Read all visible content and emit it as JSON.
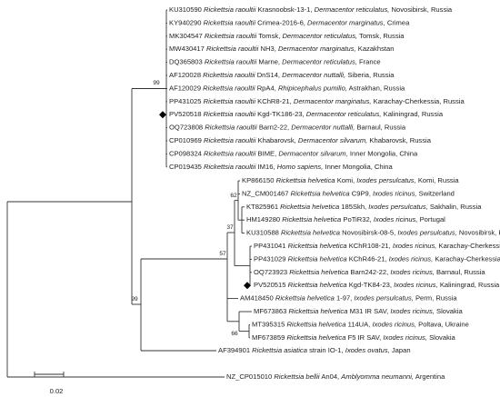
{
  "tree": {
    "leaves": [
      {
        "accession": "KU310590",
        "species": "Rickettsia raoultii",
        "strain": "Krasnoobsk-13-1,",
        "host": "Dermacentor reticulatus,",
        "location": "Novosibirsk, Russia",
        "marked": false
      },
      {
        "accession": "KY940290",
        "species": "Rickettsia raoultii",
        "strain": "Crimea-2016-6,",
        "host": "Dermacentor marginatus,",
        "location": "Crimea",
        "marked": false
      },
      {
        "accession": "MK304547",
        "species": "Rickettsia raoultii",
        "strain": "Tomsk,",
        "host": "Dermacentor reticulatus,",
        "location": "Tomsk, Russia",
        "marked": false
      },
      {
        "accession": "MW430417",
        "species": "Rickettsia raoultii",
        "strain": "NH3,",
        "host": "Dermacentor marginatus,",
        "location": "Kazakhstan",
        "marked": false
      },
      {
        "accession": "DQ365803",
        "species": "Rickettsia raoultii",
        "strain": "Marne,",
        "host": "Dermacentor reticulatus,",
        "location": "France",
        "marked": false
      },
      {
        "accession": "AF120028",
        "species": "Rickettsia raoultii",
        "strain": "DnS14,",
        "host": "Dermacentor nuttalli,",
        "location": "Siberia, Russia",
        "marked": false
      },
      {
        "accession": "AF120029",
        "species": "Rickettsia raoultii",
        "strain": "RpA4,",
        "host": "Rhipicephalus pumilio,",
        "location": "Astrakhan, Russia",
        "marked": false
      },
      {
        "accession": "PP431025",
        "species": "Rickettsia raoultii",
        "strain": "KChR8-21,",
        "host": "Dermacentor marginatus,",
        "location": "Karachay-Cherkessia, Russia",
        "marked": false
      },
      {
        "accession": "PV520518",
        "species": "Rickettsia raoultii",
        "strain": "Kgd-TK186-23,",
        "host": "Dermacentor reticulatus,",
        "location": "Kaliningrad, Russia",
        "marked": true
      },
      {
        "accession": "OQ723808",
        "species": "Rickettsia raoultii",
        "strain": "Barn2-22,",
        "host": "Dermacentor nuttalli,",
        "location": "Barnaul, Russia",
        "marked": false
      },
      {
        "accession": "CP010969",
        "species": "Rickettsia raoultii",
        "strain": "Khabarovsk,",
        "host": "Dermacentor silvarum,",
        "location": "Khabarovsk, Russia",
        "marked": false
      },
      {
        "accession": "CP098324",
        "species": "Rickettsia raoultii",
        "strain": "BIME,",
        "host": "Dermacentor silvarum,",
        "location": "Inner Mongolia, China",
        "marked": false
      },
      {
        "accession": "CP019435",
        "species": "Rickettsia raoultii",
        "strain": "IM16,",
        "host": "Homo sapiens,",
        "location": "Inner Mongolia, China",
        "marked": false
      },
      {
        "accession": "KP866150",
        "species": "Rickettsia helvetica",
        "strain": "Komi,",
        "host": "Ixodes persulcatus,",
        "location": "Komi, Russia",
        "marked": false
      },
      {
        "accession": "NZ_CM001467",
        "species": "Rickettsia helvetica",
        "strain": "C9P9,",
        "host": "Ixodes ricinus,",
        "location": "Switzerland",
        "marked": false
      },
      {
        "accession": "KT825961",
        "species": "Rickettsia helvetica",
        "strain": "185Skh,",
        "host": "Ixodes persulcatus,",
        "location": "Sakhalin, Russia",
        "marked": false
      },
      {
        "accession": "HM149280",
        "species": "Rickettsia helvetica",
        "strain": "PoTiR32,",
        "host": "Ixodes ricinus,",
        "location": "Portugal",
        "marked": false
      },
      {
        "accession": "KU310588",
        "species": "Rickettsia helvetica",
        "strain": "Novosibirsk-08-5,",
        "host": "Ixodes persulcatus,",
        "location": "Novosibirsk, Russia",
        "marked": false
      },
      {
        "accession": "PP431041",
        "species": "Rickettsia helvetica",
        "strain": "KChR108-21,",
        "host": "Ixodes ricinus,",
        "location": "Karachay-Cherkessia, Russia",
        "marked": false
      },
      {
        "accession": "PP431029",
        "species": "Rickettsia helvetica",
        "strain": "KChR46-21,",
        "host": "Ixodes ricinus,",
        "location": "Karachay-Cherkessia, Russia",
        "marked": false
      },
      {
        "accession": "OQ723923",
        "species": "Rickettsia helvetica",
        "strain": "Barn242-22,",
        "host": "Ixodes ricinus,",
        "location": "Barnaul, Russia",
        "marked": false
      },
      {
        "accession": "PV520515",
        "species": "Rickettsia helvetica",
        "strain": "Kgd-TK84-23,",
        "host": "Ixodes ricinus,",
        "location": "Kaliningrad, Russia",
        "marked": true
      },
      {
        "accession": "AM418450",
        "species": "Rickettsia helvetica",
        "strain": "1-97,",
        "host": "Ixodes persulcatus,",
        "location": "Perm, Russia",
        "marked": false
      },
      {
        "accession": "MF673863",
        "species": "Rickettsia helvetica",
        "strain": "M31 IR SAV,",
        "host": "Ixodes ricinus,",
        "location": "Slovakia",
        "marked": false
      },
      {
        "accession": "MT395315",
        "species": "Rickettsia helvetica",
        "strain": "114UA,",
        "host": "Ixodes ricinus,",
        "location": "Poltava, Ukraine",
        "marked": false
      },
      {
        "accession": "MF673859",
        "species": "Rickettsia helvetica",
        "strain": "F5 IR SAV,",
        "host": "Ixodes ricinus,",
        "location": "Slovakia",
        "marked": false
      },
      {
        "accession": "AF394901",
        "species": "Rickettsia asiatica",
        "strain": "strain IO-1,",
        "host": "Ixodes ovatus,",
        "location": "Japan",
        "marked": false
      },
      {
        "accession": "NZ_CP015010",
        "species": "Rickettsia bellii",
        "strain": "An04,",
        "host": "Amblyomma neumanni,",
        "location": "Argentina",
        "marked": false
      }
    ],
    "bootstrap": [
      99,
      62,
      37,
      57,
      99,
      66
    ],
    "scale_bar": 0.02
  }
}
